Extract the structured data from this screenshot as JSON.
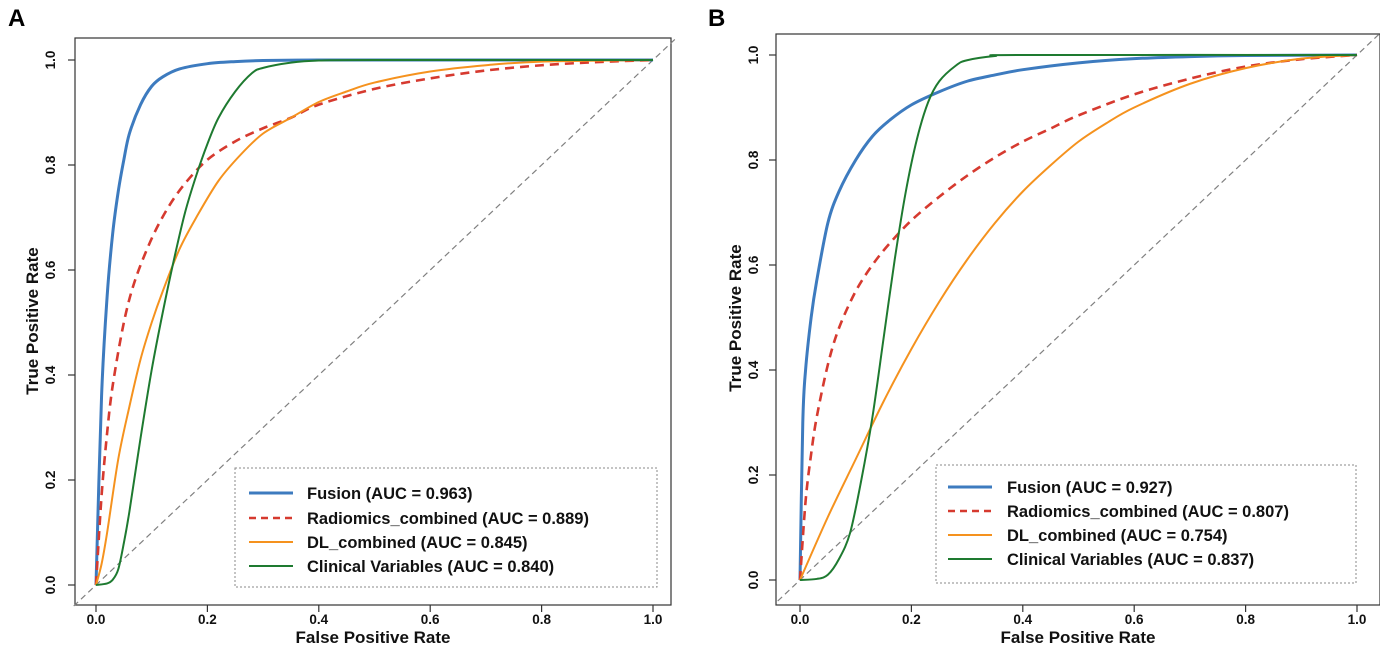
{
  "chart_data": [
    {
      "type": "line",
      "panel_label": "A",
      "title": "",
      "xlabel": "False Positive Rate",
      "ylabel": "True Positive Rate",
      "xlim": [
        0,
        1
      ],
      "ylim": [
        0,
        1
      ],
      "xticks": [
        "0.0",
        "0.2",
        "0.4",
        "0.6",
        "0.8",
        "1.0"
      ],
      "yticks": [
        "0.0",
        "0.2",
        "0.4",
        "0.6",
        "0.8",
        "1.0"
      ],
      "grid": false,
      "legend_position": "bottom-right",
      "reference_line": {
        "name": "chance",
        "x": [
          0,
          1
        ],
        "y": [
          0,
          1
        ],
        "style": "dashed",
        "color": "#808080"
      },
      "series": [
        {
          "name": "Fusion (AUC = 0.963)",
          "color": "#3d7bbf",
          "style": "solid",
          "x": [
            0,
            0.01,
            0.02,
            0.03,
            0.04,
            0.05,
            0.06,
            0.08,
            0.1,
            0.12,
            0.15,
            0.2,
            0.25,
            0.3,
            0.4,
            0.5,
            0.6,
            0.8,
            1.0
          ],
          "y": [
            0,
            0.36,
            0.55,
            0.67,
            0.75,
            0.81,
            0.86,
            0.915,
            0.95,
            0.968,
            0.983,
            0.993,
            0.997,
            0.999,
            1.0,
            1.0,
            1.0,
            1.0,
            1.0
          ]
        },
        {
          "name": "Radiomics_combined (AUC = 0.889)",
          "color": "#d63a2f",
          "style": "dashed",
          "x": [
            0,
            0.01,
            0.02,
            0.03,
            0.05,
            0.07,
            0.1,
            0.13,
            0.16,
            0.2,
            0.25,
            0.3,
            0.35,
            0.4,
            0.5,
            0.6,
            0.7,
            0.8,
            0.9,
            1.0
          ],
          "y": [
            0,
            0.17,
            0.29,
            0.38,
            0.5,
            0.58,
            0.66,
            0.72,
            0.765,
            0.81,
            0.845,
            0.87,
            0.89,
            0.915,
            0.945,
            0.965,
            0.98,
            0.99,
            0.996,
            1.0
          ]
        },
        {
          "name": "DL_combined (AUC = 0.845)",
          "color": "#f5921e",
          "style": "solid",
          "x": [
            0,
            0.01,
            0.02,
            0.04,
            0.06,
            0.08,
            0.1,
            0.12,
            0.15,
            0.18,
            0.22,
            0.26,
            0.3,
            0.35,
            0.4,
            0.45,
            0.5,
            0.6,
            0.7,
            0.8,
            1.0
          ],
          "y": [
            0,
            0.04,
            0.1,
            0.24,
            0.34,
            0.43,
            0.5,
            0.56,
            0.64,
            0.7,
            0.77,
            0.82,
            0.86,
            0.89,
            0.92,
            0.94,
            0.957,
            0.978,
            0.99,
            0.997,
            1.0
          ]
        },
        {
          "name": "Clinical Variables (AUC = 0.840)",
          "color": "#1e7a30",
          "style": "solid",
          "x": [
            0,
            0.02,
            0.03,
            0.04,
            0.05,
            0.06,
            0.08,
            0.1,
            0.12,
            0.14,
            0.16,
            0.18,
            0.2,
            0.22,
            0.25,
            0.28,
            0.3,
            0.35,
            0.4,
            0.5,
            1.0
          ],
          "y": [
            0,
            0.003,
            0.01,
            0.03,
            0.08,
            0.14,
            0.28,
            0.41,
            0.52,
            0.62,
            0.71,
            0.78,
            0.84,
            0.89,
            0.94,
            0.975,
            0.985,
            0.995,
            0.999,
            1.0,
            1.0
          ]
        }
      ]
    },
    {
      "type": "line",
      "panel_label": "B",
      "title": "",
      "xlabel": "False Positive Rate",
      "ylabel": "True Positive Rate",
      "xlim": [
        0,
        1
      ],
      "ylim": [
        0,
        1
      ],
      "xticks": [
        "0.0",
        "0.2",
        "0.4",
        "0.6",
        "0.8",
        "1.0"
      ],
      "yticks": [
        "0.0",
        "0.2",
        "0.4",
        "0.6",
        "0.8",
        "1.0"
      ],
      "grid": false,
      "legend_position": "bottom-right",
      "reference_line": {
        "name": "chance",
        "x": [
          0,
          1
        ],
        "y": [
          0,
          1
        ],
        "style": "dashed",
        "color": "#808080"
      },
      "series": [
        {
          "name": "Fusion (AUC = 0.927)",
          "color": "#3d7bbf",
          "style": "solid",
          "x": [
            0,
            0.005,
            0.01,
            0.02,
            0.03,
            0.05,
            0.07,
            0.1,
            0.13,
            0.16,
            0.2,
            0.25,
            0.3,
            0.35,
            0.4,
            0.5,
            0.6,
            0.7,
            0.8,
            1.0
          ],
          "y": [
            0,
            0.3,
            0.4,
            0.5,
            0.57,
            0.68,
            0.74,
            0.8,
            0.845,
            0.875,
            0.905,
            0.93,
            0.95,
            0.962,
            0.972,
            0.985,
            0.993,
            0.997,
            0.999,
            1.0
          ]
        },
        {
          "name": "Radiomics_combined (AUC = 0.807)",
          "color": "#d63a2f",
          "style": "dashed",
          "x": [
            0,
            0.01,
            0.02,
            0.03,
            0.05,
            0.07,
            0.1,
            0.13,
            0.16,
            0.2,
            0.25,
            0.3,
            0.35,
            0.4,
            0.45,
            0.5,
            0.6,
            0.7,
            0.8,
            0.9,
            1.0
          ],
          "y": [
            0,
            0.15,
            0.24,
            0.31,
            0.41,
            0.48,
            0.55,
            0.6,
            0.64,
            0.685,
            0.73,
            0.77,
            0.805,
            0.835,
            0.86,
            0.885,
            0.925,
            0.955,
            0.978,
            0.992,
            1.0
          ]
        },
        {
          "name": "DL_combined (AUC = 0.754)",
          "color": "#f5921e",
          "style": "solid",
          "x": [
            0,
            0.05,
            0.1,
            0.15,
            0.2,
            0.25,
            0.3,
            0.35,
            0.4,
            0.45,
            0.5,
            0.55,
            0.6,
            0.7,
            0.8,
            0.9,
            1.0
          ],
          "y": [
            0,
            0.12,
            0.23,
            0.34,
            0.44,
            0.53,
            0.61,
            0.68,
            0.74,
            0.79,
            0.835,
            0.87,
            0.9,
            0.945,
            0.975,
            0.993,
            1.0
          ]
        },
        {
          "name": "Clinical Variables (AUC = 0.837)",
          "color": "#1e7a30",
          "style": "solid",
          "x": [
            0,
            0.03,
            0.05,
            0.07,
            0.09,
            0.11,
            0.13,
            0.15,
            0.17,
            0.19,
            0.21,
            0.23,
            0.25,
            0.28,
            0.3,
            0.35,
            0.4,
            1.0
          ],
          "y": [
            0,
            0.002,
            0.01,
            0.04,
            0.09,
            0.19,
            0.31,
            0.46,
            0.61,
            0.74,
            0.84,
            0.91,
            0.95,
            0.98,
            0.99,
            0.998,
            1.0,
            1.0
          ]
        }
      ]
    }
  ]
}
